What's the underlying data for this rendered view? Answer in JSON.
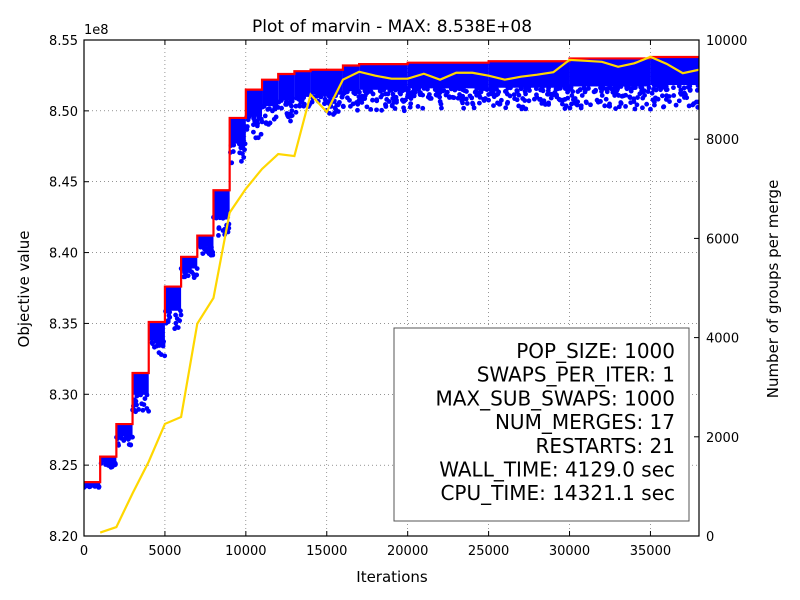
{
  "chart_data": {
    "type": "line",
    "title": "Plot of marvin - MAX: 8.538E+08",
    "xlabel": "Iterations",
    "ylabel": "Objective value",
    "y2label": "Number of groups per merge",
    "y_multiplier": "1e8",
    "xlim": [
      0,
      38000
    ],
    "ylim": [
      8.2,
      8.55
    ],
    "y2lim": [
      0,
      10000
    ],
    "x_ticks": [
      "0",
      "5000",
      "10000",
      "15000",
      "20000",
      "25000",
      "30000",
      "35000"
    ],
    "y_ticks": [
      "8.20",
      "8.25",
      "8.30",
      "8.35",
      "8.40",
      "8.45",
      "8.50",
      "8.55"
    ],
    "y2_ticks": [
      "0",
      "2000",
      "4000",
      "6000",
      "8000",
      "10000"
    ],
    "grid": true,
    "colors": {
      "best": "#ff0000",
      "population": "#0000ff",
      "groups": "#ffd700"
    },
    "series": [
      {
        "role": "best",
        "axis": "left",
        "points": [
          [
            0,
            8.238
          ],
          [
            1000,
            8.238
          ],
          [
            1000,
            8.256
          ],
          [
            2000,
            8.256
          ],
          [
            2000,
            8.279
          ],
          [
            3000,
            8.279
          ],
          [
            3000,
            8.315
          ],
          [
            4000,
            8.315
          ],
          [
            4000,
            8.351
          ],
          [
            5000,
            8.351
          ],
          [
            5000,
            8.376
          ],
          [
            6000,
            8.376
          ],
          [
            6000,
            8.397
          ],
          [
            7000,
            8.397
          ],
          [
            7000,
            8.412
          ],
          [
            8000,
            8.412
          ],
          [
            8000,
            8.444
          ],
          [
            9000,
            8.444
          ],
          [
            9000,
            8.495
          ],
          [
            10000,
            8.495
          ],
          [
            10000,
            8.515
          ],
          [
            11000,
            8.515
          ],
          [
            11000,
            8.522
          ],
          [
            12000,
            8.522
          ],
          [
            12000,
            8.526
          ],
          [
            13000,
            8.526
          ],
          [
            13000,
            8.528
          ],
          [
            14000,
            8.528
          ],
          [
            14000,
            8.529
          ],
          [
            16000,
            8.529
          ],
          [
            16000,
            8.532
          ],
          [
            17000,
            8.532
          ],
          [
            17000,
            8.533
          ],
          [
            20000,
            8.533
          ],
          [
            20000,
            8.534
          ],
          [
            25000,
            8.534
          ],
          [
            25000,
            8.535
          ],
          [
            30000,
            8.535
          ],
          [
            30000,
            8.537
          ],
          [
            35000,
            8.537
          ],
          [
            35000,
            8.538
          ],
          [
            38000,
            8.538
          ]
        ]
      },
      {
        "role": "population",
        "axis": "left",
        "bands": [
          [
            0,
            1000,
            8.234,
            8.238
          ],
          [
            1000,
            2000,
            8.248,
            8.256
          ],
          [
            2000,
            3000,
            8.263,
            8.279
          ],
          [
            3000,
            4000,
            8.287,
            8.315
          ],
          [
            4000,
            5000,
            8.327,
            8.351
          ],
          [
            5000,
            6000,
            8.345,
            8.376
          ],
          [
            6000,
            7000,
            8.382,
            8.397
          ],
          [
            7000,
            8000,
            8.398,
            8.412
          ],
          [
            8000,
            9000,
            8.41,
            8.444
          ],
          [
            9000,
            10000,
            8.462,
            8.495
          ],
          [
            10000,
            11000,
            8.48,
            8.515
          ],
          [
            11000,
            12000,
            8.488,
            8.522
          ],
          [
            12000,
            13000,
            8.492,
            8.526
          ],
          [
            13000,
            14000,
            8.495,
            8.528
          ],
          [
            14000,
            16000,
            8.497,
            8.529
          ],
          [
            16000,
            17000,
            8.499,
            8.532
          ],
          [
            17000,
            20000,
            8.5,
            8.533
          ],
          [
            20000,
            25000,
            8.501,
            8.534
          ],
          [
            25000,
            30000,
            8.501,
            8.535
          ],
          [
            30000,
            35000,
            8.501,
            8.537
          ],
          [
            35000,
            38000,
            8.502,
            8.538
          ]
        ]
      },
      {
        "role": "groups",
        "axis": "right",
        "points": [
          [
            1000,
            70
          ],
          [
            2000,
            180
          ],
          [
            3000,
            860
          ],
          [
            4000,
            1500
          ],
          [
            5000,
            2260
          ],
          [
            6000,
            2400
          ],
          [
            7000,
            4280
          ],
          [
            8000,
            4800
          ],
          [
            9000,
            6520
          ],
          [
            10000,
            7000
          ],
          [
            11000,
            7400
          ],
          [
            12000,
            7700
          ],
          [
            13000,
            7660
          ],
          [
            14000,
            8900
          ],
          [
            15000,
            8550
          ],
          [
            16000,
            9200
          ],
          [
            17000,
            9360
          ],
          [
            18000,
            9280
          ],
          [
            19000,
            9220
          ],
          [
            20000,
            9220
          ],
          [
            21000,
            9320
          ],
          [
            22000,
            9200
          ],
          [
            23000,
            9340
          ],
          [
            24000,
            9340
          ],
          [
            25000,
            9280
          ],
          [
            26000,
            9200
          ],
          [
            27000,
            9260
          ],
          [
            28000,
            9300
          ],
          [
            29000,
            9350
          ],
          [
            30000,
            9600
          ],
          [
            31000,
            9580
          ],
          [
            32000,
            9560
          ],
          [
            33000,
            9460
          ],
          [
            34000,
            9530
          ],
          [
            35000,
            9660
          ],
          [
            36000,
            9520
          ],
          [
            37000,
            9330
          ],
          [
            38000,
            9400
          ]
        ]
      }
    ],
    "annotation": {
      "position": "bottom-right",
      "lines": [
        "POP_SIZE: 1000",
        "SWAPS_PER_ITER: 1",
        "MAX_SUB_SWAPS: 1000",
        "NUM_MERGES: 17",
        "RESTARTS: 21",
        "WALL_TIME: 4129.0 sec",
        "CPU_TIME: 14321.1 sec"
      ]
    }
  }
}
